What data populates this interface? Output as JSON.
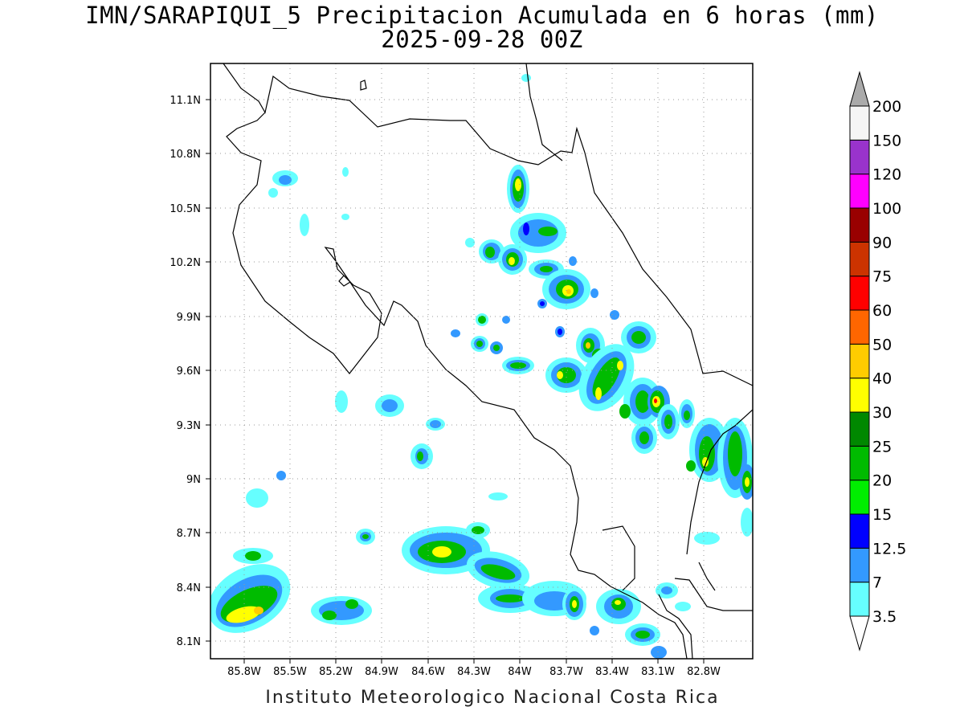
{
  "header": {
    "title": "IMN/SARAPIQUI_5 Precipitacion Acumulada en 6 horas (mm)",
    "datetime": "2025-09-28 00Z"
  },
  "footer": {
    "credit": "Instituto Meteorologico Nacional Costa Rica"
  },
  "map": {
    "lon_range": [
      -86.0,
      -82.63
    ],
    "lat_range": [
      8.01,
      11.3
    ],
    "lat_ticks": [
      "11.1N",
      "10.8N",
      "10.5N",
      "10.2N",
      "9.9N",
      "9.6N",
      "9.3N",
      "9N",
      "8.7N",
      "8.4N",
      "8.1N"
    ],
    "lon_ticks": [
      "85.8W",
      "85.5W",
      "85.2W",
      "84.9W",
      "84.6W",
      "84.3W",
      "84W",
      "83.7W",
      "83.4W",
      "83.1W",
      "82.8W"
    ],
    "gridlines": "dotted"
  },
  "colorbar": {
    "levels": [
      "3.5",
      "7",
      "12.5",
      "15",
      "20",
      "25",
      "30",
      "40",
      "50",
      "60",
      "75",
      "90",
      "100",
      "120",
      "150",
      "200"
    ],
    "colors": [
      "#66ffff",
      "#3399ff",
      "#0000ff",
      "#00ee00",
      "#00bb00",
      "#008800",
      "#ffff00",
      "#ffcc00",
      "#ff6600",
      "#ff0000",
      "#cc3300",
      "#990000",
      "#ff00ff",
      "#9933cc",
      "#f5f5f5"
    ],
    "under_color": "#ffffff",
    "over_color": "#aaaaaa"
  }
}
